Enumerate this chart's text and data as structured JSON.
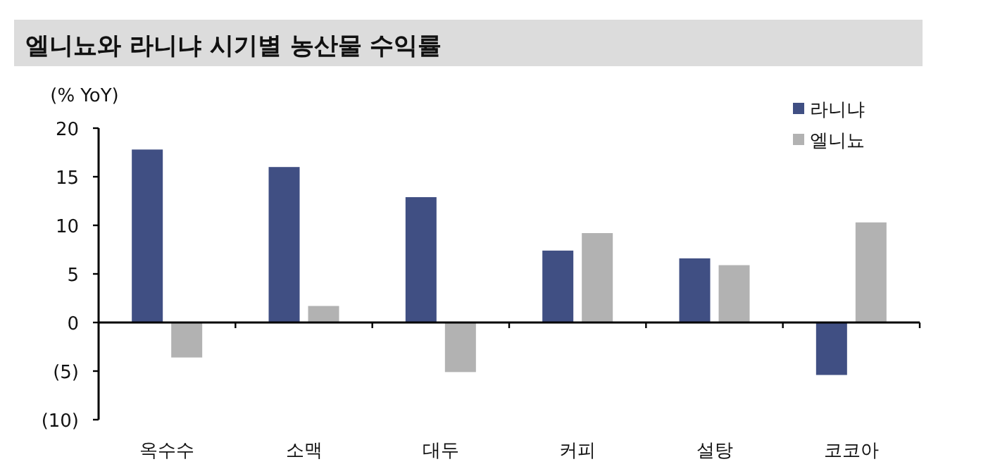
{
  "chart_data": {
    "type": "bar",
    "title": "엘니뇨와 라니냐 시기별 농산물 수익률",
    "ylabel": "(% YoY)",
    "categories": [
      "옥수수",
      "소맥",
      "대두",
      "커피",
      "설탕",
      "코코아"
    ],
    "series": [
      {
        "name": "라니냐",
        "color": "#404f83",
        "values": [
          17.8,
          16.0,
          12.9,
          7.4,
          6.6,
          -5.4
        ]
      },
      {
        "name": "엘니뇨",
        "color": "#b2b2b2",
        "values": [
          -3.6,
          1.7,
          -5.1,
          9.2,
          5.9,
          10.3
        ]
      }
    ],
    "ylim": [
      -10,
      20
    ],
    "yticks": [
      20,
      15,
      10,
      5,
      0,
      {
        "value": -5,
        "label": "(5)"
      },
      {
        "value": -10,
        "label": "(10)"
      }
    ],
    "legend": "top right"
  }
}
